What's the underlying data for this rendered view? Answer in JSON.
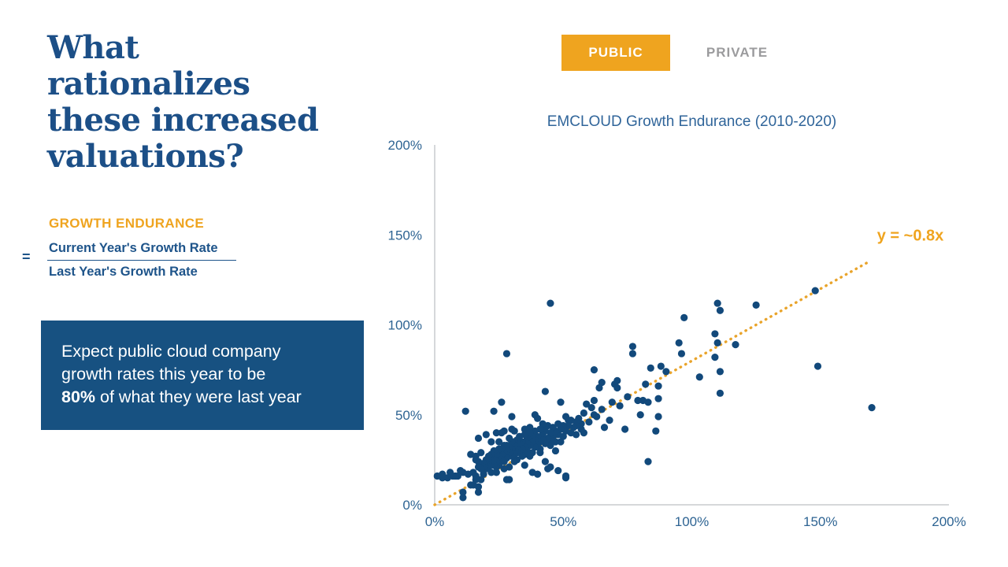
{
  "header": {
    "title_lines": [
      "What",
      "rationalizes",
      "these increased",
      "valuations?"
    ]
  },
  "formula": {
    "heading": "GROWTH ENDURANCE",
    "equals": "=",
    "numerator": "Current Year's Growth Rate",
    "denominator": "Last Year's Growth Rate"
  },
  "callout": {
    "line1": "Expect public cloud company",
    "line2": "growth rates this year to be",
    "line3_bold": "80%",
    "line3_rest": "of what they were last year"
  },
  "toggle": {
    "public_label": "PUBLIC",
    "private_label": "PRIVATE"
  },
  "colors": {
    "navy_title": "#1C4F87",
    "accent_orange": "#EFA41F",
    "callout_bg": "#175181",
    "point_blue": "#12497B",
    "axis_text_blue": "#2E6493",
    "private_gray": "#9B9B9D",
    "axis_line_gray": "#C9CCCE"
  },
  "chart_data": {
    "type": "scatter",
    "title": "EMCLOUD Growth Endurance (2010-2020)",
    "xlabel": "",
    "ylabel": "",
    "xlim": [
      0,
      200
    ],
    "ylim": [
      0,
      200
    ],
    "grid": false,
    "x_tick_vals": [
      0,
      50,
      100,
      150,
      200
    ],
    "x_ticks": [
      "0%",
      "50%",
      "100%",
      "150%",
      "200%"
    ],
    "y_tick_vals": [
      0,
      50,
      100,
      150,
      200
    ],
    "y_ticks": [
      "0%",
      "50%",
      "100%",
      "150%",
      "200%"
    ],
    "point_color": "#12497B",
    "trend": {
      "label": "y = ~0.8x",
      "slope": 0.8,
      "x_start": 0,
      "x_end": 169,
      "style": "dotted",
      "color": "#E9A42B",
      "label_pos": [
        185,
        150
      ]
    },
    "points": [
      [
        148,
        119
      ],
      [
        149,
        77
      ],
      [
        170,
        54
      ],
      [
        125,
        111
      ],
      [
        117,
        89
      ],
      [
        110,
        112
      ],
      [
        111,
        108
      ],
      [
        109,
        95
      ],
      [
        110,
        90
      ],
      [
        109,
        82
      ],
      [
        111,
        74
      ],
      [
        111,
        62
      ],
      [
        103,
        71
      ],
      [
        97,
        104
      ],
      [
        95,
        90
      ],
      [
        96,
        84
      ],
      [
        90,
        74
      ],
      [
        88,
        77
      ],
      [
        87,
        66
      ],
      [
        87,
        59
      ],
      [
        87,
        49
      ],
      [
        86,
        41
      ],
      [
        84,
        76
      ],
      [
        83,
        57
      ],
      [
        83,
        24
      ],
      [
        82,
        67
      ],
      [
        81,
        58
      ],
      [
        80,
        50
      ],
      [
        79,
        58
      ],
      [
        77,
        88
      ],
      [
        77,
        84
      ],
      [
        75,
        60
      ],
      [
        74,
        42
      ],
      [
        72,
        55
      ],
      [
        71,
        69
      ],
      [
        71,
        65
      ],
      [
        70,
        67
      ],
      [
        69,
        57
      ],
      [
        68,
        47
      ],
      [
        66,
        43
      ],
      [
        65,
        68
      ],
      [
        65,
        53
      ],
      [
        64,
        65
      ],
      [
        63,
        49
      ],
      [
        62,
        75
      ],
      [
        62,
        58
      ],
      [
        62,
        50
      ],
      [
        61,
        54
      ],
      [
        60,
        46
      ],
      [
        59,
        56
      ],
      [
        58,
        51
      ],
      [
        58,
        40
      ],
      [
        57,
        45
      ],
      [
        57,
        42
      ],
      [
        56,
        48
      ],
      [
        55,
        46
      ],
      [
        55,
        44
      ],
      [
        55,
        39
      ],
      [
        54,
        43
      ],
      [
        53,
        47
      ],
      [
        53,
        40
      ],
      [
        52,
        47
      ],
      [
        52,
        44
      ],
      [
        51,
        49
      ],
      [
        51,
        41
      ],
      [
        51,
        16
      ],
      [
        51,
        15
      ],
      [
        50,
        44
      ],
      [
        50,
        38
      ],
      [
        49,
        57
      ],
      [
        49,
        42
      ],
      [
        49,
        35
      ],
      [
        48,
        45
      ],
      [
        48,
        39
      ],
      [
        48,
        19
      ],
      [
        47,
        41
      ],
      [
        47,
        35
      ],
      [
        47,
        30
      ],
      [
        46,
        43
      ],
      [
        46,
        38
      ],
      [
        45,
        112
      ],
      [
        45,
        40
      ],
      [
        45,
        36
      ],
      [
        45,
        33
      ],
      [
        45,
        21
      ],
      [
        44,
        44
      ],
      [
        44,
        37
      ],
      [
        44,
        20
      ],
      [
        43,
        63
      ],
      [
        43,
        43
      ],
      [
        43,
        41
      ],
      [
        43,
        34
      ],
      [
        43,
        24
      ],
      [
        42,
        45
      ],
      [
        42,
        39
      ],
      [
        42,
        36
      ],
      [
        41,
        42
      ],
      [
        41,
        35
      ],
      [
        41,
        31
      ],
      [
        41,
        29
      ],
      [
        40,
        48
      ],
      [
        40,
        38
      ],
      [
        40,
        33
      ],
      [
        40,
        17
      ],
      [
        39,
        50
      ],
      [
        39,
        41
      ],
      [
        39,
        36
      ],
      [
        39,
        32
      ],
      [
        38,
        38
      ],
      [
        38,
        35
      ],
      [
        38,
        29
      ],
      [
        38,
        18
      ],
      [
        37,
        43
      ],
      [
        37,
        40
      ],
      [
        37,
        33
      ],
      [
        37,
        27
      ],
      [
        36,
        37
      ],
      [
        36,
        34
      ],
      [
        36,
        30
      ],
      [
        35,
        42
      ],
      [
        35,
        39
      ],
      [
        35,
        32
      ],
      [
        35,
        28
      ],
      [
        35,
        22
      ],
      [
        34,
        35
      ],
      [
        34,
        31
      ],
      [
        34,
        27
      ],
      [
        33,
        38
      ],
      [
        33,
        34
      ],
      [
        33,
        30
      ],
      [
        32,
        36
      ],
      [
        32,
        31
      ],
      [
        32,
        29
      ],
      [
        32,
        25
      ],
      [
        31,
        41
      ],
      [
        31,
        35
      ],
      [
        31,
        33
      ],
      [
        31,
        28
      ],
      [
        31,
        24
      ],
      [
        30,
        49
      ],
      [
        30,
        42
      ],
      [
        30,
        35
      ],
      [
        30,
        31
      ],
      [
        30,
        27
      ],
      [
        29,
        37
      ],
      [
        29,
        32
      ],
      [
        29,
        29
      ],
      [
        29,
        21
      ],
      [
        29,
        14
      ],
      [
        28,
        84
      ],
      [
        28,
        33
      ],
      [
        28,
        30
      ],
      [
        28,
        26
      ],
      [
        28,
        14
      ],
      [
        27,
        41
      ],
      [
        27,
        33
      ],
      [
        27,
        29
      ],
      [
        27,
        24
      ],
      [
        27,
        20
      ],
      [
        26,
        57
      ],
      [
        26,
        40
      ],
      [
        26,
        31
      ],
      [
        26,
        28
      ],
      [
        26,
        25
      ],
      [
        25,
        35
      ],
      [
        25,
        31
      ],
      [
        25,
        27
      ],
      [
        25,
        22
      ],
      [
        24,
        40
      ],
      [
        24,
        28
      ],
      [
        24,
        24
      ],
      [
        24,
        21
      ],
      [
        24,
        18
      ],
      [
        23,
        52
      ],
      [
        23,
        30
      ],
      [
        23,
        25
      ],
      [
        23,
        22
      ],
      [
        22,
        35
      ],
      [
        22,
        28
      ],
      [
        22,
        24
      ],
      [
        22,
        18
      ],
      [
        21,
        27
      ],
      [
        21,
        24
      ],
      [
        21,
        21
      ],
      [
        20,
        39
      ],
      [
        20,
        25
      ],
      [
        20,
        20
      ],
      [
        19,
        23
      ],
      [
        19,
        21
      ],
      [
        19,
        17
      ],
      [
        18,
        29
      ],
      [
        18,
        20
      ],
      [
        18,
        14
      ],
      [
        17,
        37
      ],
      [
        17,
        24
      ],
      [
        17,
        21
      ],
      [
        17,
        10
      ],
      [
        17,
        7
      ],
      [
        16,
        27
      ],
      [
        16,
        25
      ],
      [
        16,
        16
      ],
      [
        16,
        14
      ],
      [
        15,
        18
      ],
      [
        15,
        11
      ],
      [
        14,
        28
      ],
      [
        14,
        11
      ],
      [
        13,
        17
      ],
      [
        12,
        52
      ],
      [
        11,
        18
      ],
      [
        11,
        7
      ],
      [
        11,
        4
      ],
      [
        10,
        19
      ],
      [
        9,
        16
      ],
      [
        8,
        16
      ],
      [
        7,
        16
      ],
      [
        6,
        18
      ],
      [
        5,
        15
      ],
      [
        3,
        17
      ],
      [
        3,
        15
      ],
      [
        1,
        16
      ]
    ]
  }
}
